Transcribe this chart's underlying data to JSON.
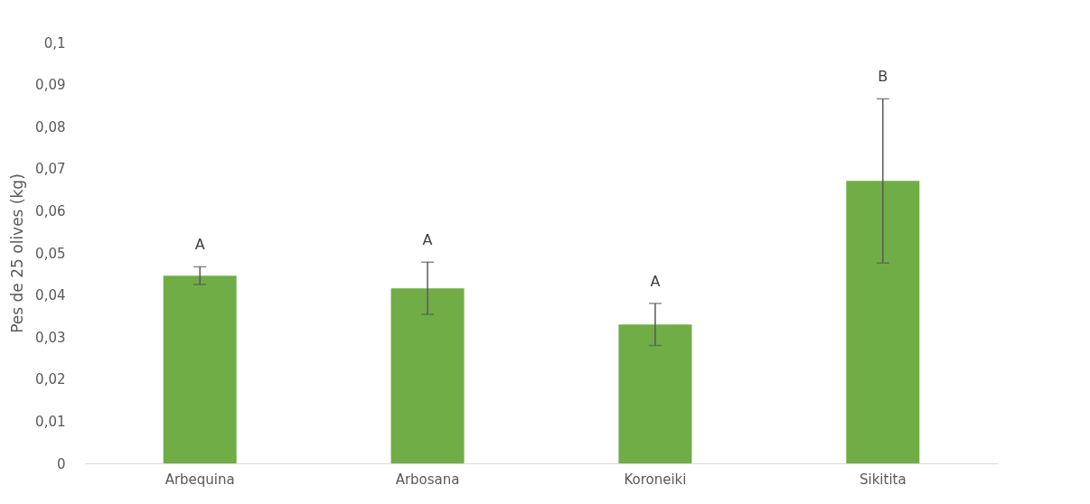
{
  "chart_data": {
    "type": "bar",
    "ylabel": "Pes de 25 olives (kg)",
    "categories": [
      "Arbequina",
      "Arbosana",
      "Koroneiki",
      "Sikitita"
    ],
    "values": [
      0.0446,
      0.0416,
      0.033,
      0.0671
    ],
    "errors": [
      0.0021,
      0.0062,
      0.005,
      0.0195
    ],
    "color": "#70ad47",
    "ylim": [
      0,
      0.1
    ],
    "yticks": [
      {
        "value": 0,
        "label": "0"
      },
      {
        "value": 0.01,
        "label": "0,01"
      },
      {
        "value": 0.02,
        "label": "0,02"
      },
      {
        "value": 0.03,
        "label": "0,03"
      },
      {
        "value": 0.04,
        "label": "0,04"
      },
      {
        "value": 0.05,
        "label": "0,05"
      },
      {
        "value": 0.06,
        "label": "0,06"
      },
      {
        "value": 0.07,
        "label": "0,07"
      },
      {
        "value": 0.08,
        "label": "0,08"
      },
      {
        "value": 0.09,
        "label": "0,09"
      },
      {
        "value": 0.1,
        "label": "0,1"
      }
    ],
    "grid": false,
    "annotations": [
      {
        "text": "A",
        "x": "Arbequina",
        "y": 0.0467
      },
      {
        "text": "A",
        "x": "Arbosana",
        "y": 0.0478
      },
      {
        "text": "A",
        "x": "Koroneiki",
        "y": 0.038
      },
      {
        "text": "B",
        "x": "Sikitita",
        "y": 0.0866
      }
    ]
  }
}
